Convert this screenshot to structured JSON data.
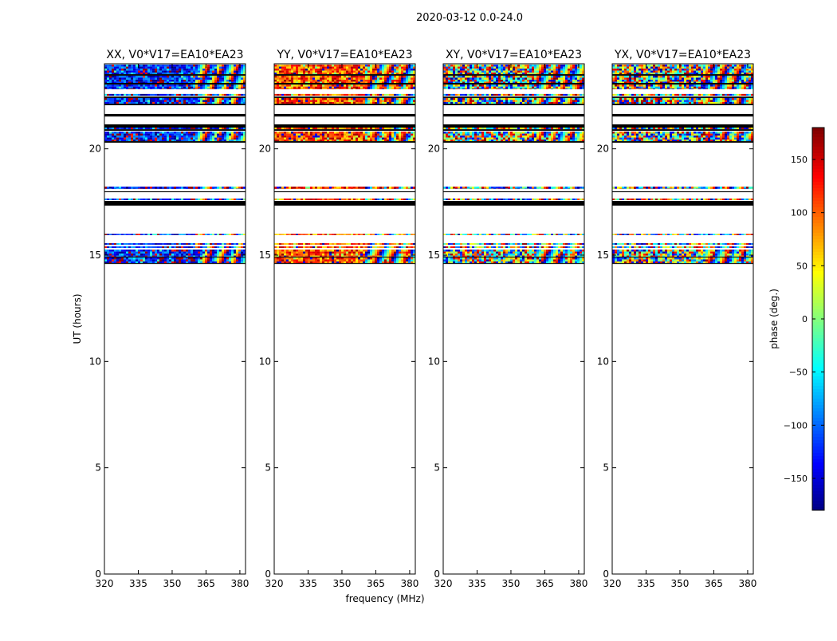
{
  "chart_data": {
    "type": "heatmap",
    "title": "2020-03-12 0.0-24.0",
    "xlabel": "frequency (MHz)",
    "ylabel": "UT (hours)",
    "xlim": [
      320,
      382.5
    ],
    "ylim": [
      0,
      24
    ],
    "xticks": [
      320,
      335,
      350,
      365,
      380
    ],
    "yticks": [
      0,
      5,
      10,
      15,
      20
    ],
    "colorbar": {
      "label": "phase (deg.)",
      "range": [
        -180,
        180
      ],
      "ticks": [
        150,
        100,
        50,
        0,
        -50,
        -100,
        -150
      ],
      "colormap": "jet"
    },
    "panels": [
      {
        "title": "XX, V0*V17=EA10*EA23",
        "mean_phase": -130,
        "scatter": 60
      },
      {
        "title": "YY, V0*V17=EA10*EA23",
        "mean_phase": 110,
        "scatter": 60
      },
      {
        "title": "XY, V0*V17=EA10*EA23",
        "mean_phase": 0,
        "scatter": 180
      },
      {
        "title": "YX, V0*V17=EA10*EA23",
        "mean_phase": 20,
        "scatter": 180
      }
    ],
    "fringe_start_mhz": 360,
    "time_bands_hours": [
      {
        "start": 23.51,
        "end": 23.96,
        "kind": "data"
      },
      {
        "start": 23.44,
        "end": 23.51,
        "kind": "flagged"
      },
      {
        "start": 23.1,
        "end": 23.44,
        "kind": "data"
      },
      {
        "start": 23.02,
        "end": 23.1,
        "kind": "flagged"
      },
      {
        "start": 22.8,
        "end": 23.02,
        "kind": "data"
      },
      {
        "start": 22.5,
        "end": 22.58,
        "kind": "data"
      },
      {
        "start": 22.39,
        "end": 22.46,
        "kind": "flagged"
      },
      {
        "start": 22.12,
        "end": 22.39,
        "kind": "data"
      },
      {
        "start": 22.05,
        "end": 22.12,
        "kind": "flagged"
      },
      {
        "start": 21.52,
        "end": 21.64,
        "kind": "flagged"
      },
      {
        "start": 21.0,
        "end": 21.15,
        "kind": "flagged"
      },
      {
        "start": 20.92,
        "end": 21.0,
        "kind": "data"
      },
      {
        "start": 20.85,
        "end": 20.92,
        "kind": "flagged"
      },
      {
        "start": 20.36,
        "end": 20.81,
        "kind": "data"
      },
      {
        "start": 20.29,
        "end": 20.36,
        "kind": "flagged"
      },
      {
        "start": 18.11,
        "end": 18.22,
        "kind": "data"
      },
      {
        "start": 17.96,
        "end": 18.0,
        "kind": "flagged"
      },
      {
        "start": 17.59,
        "end": 17.66,
        "kind": "data"
      },
      {
        "start": 17.33,
        "end": 17.55,
        "kind": "flagged"
      },
      {
        "start": 15.94,
        "end": 16.0,
        "kind": "data"
      },
      {
        "start": 15.49,
        "end": 15.56,
        "kind": "data"
      },
      {
        "start": 15.34,
        "end": 15.41,
        "kind": "data"
      },
      {
        "start": 14.93,
        "end": 15.26,
        "kind": "data"
      },
      {
        "start": 14.89,
        "end": 14.93,
        "kind": "flagged"
      },
      {
        "start": 14.62,
        "end": 14.89,
        "kind": "data"
      },
      {
        "start": 14.59,
        "end": 14.62,
        "kind": "flagged"
      }
    ]
  }
}
